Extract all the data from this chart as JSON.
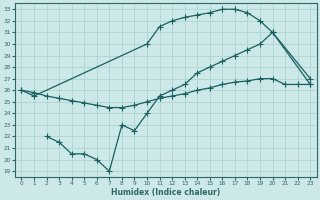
{
  "xlabel": "Humidex (Indice chaleur)",
  "bg_color": "#cce8e8",
  "grid_color": "#a8d0d0",
  "line_color": "#1a6060",
  "spine_color": "#336666",
  "xlim": [
    -0.5,
    23.5
  ],
  "ylim": [
    18.5,
    33.5
  ],
  "xticks": [
    0,
    1,
    2,
    3,
    4,
    5,
    6,
    7,
    8,
    9,
    10,
    11,
    12,
    13,
    14,
    15,
    16,
    17,
    18,
    19,
    20,
    21,
    22,
    23
  ],
  "yticks": [
    19,
    20,
    21,
    22,
    23,
    24,
    25,
    26,
    27,
    28,
    29,
    30,
    31,
    32,
    33
  ],
  "curve1_x": [
    0,
    1,
    10,
    11,
    12,
    13,
    14,
    15,
    16,
    17,
    18,
    19,
    20,
    23
  ],
  "curve1_y": [
    26.0,
    25.5,
    30.0,
    31.5,
    32.0,
    32.3,
    32.5,
    32.7,
    33.0,
    33.0,
    32.7,
    32.0,
    31.0,
    26.5
  ],
  "curve2_x": [
    0,
    1,
    2,
    3,
    4,
    5,
    6,
    7,
    8,
    9,
    10,
    11,
    12,
    13,
    14,
    15,
    16,
    17,
    18,
    19,
    20,
    21,
    22,
    23
  ],
  "curve2_y": [
    26.0,
    25.8,
    25.5,
    25.3,
    25.1,
    24.9,
    24.7,
    24.5,
    24.5,
    24.7,
    25.0,
    25.3,
    25.5,
    25.7,
    26.0,
    26.2,
    26.5,
    26.7,
    26.8,
    27.0,
    27.0,
    26.5,
    26.5,
    26.5
  ],
  "curve3_x": [
    2,
    3,
    4,
    5,
    6,
    7,
    8,
    9,
    10,
    11,
    12,
    13,
    14,
    15,
    16,
    17,
    18,
    19,
    20,
    23
  ],
  "curve3_y": [
    22.0,
    21.5,
    20.5,
    20.5,
    20.0,
    19.0,
    23.0,
    22.5,
    24.0,
    25.5,
    26.0,
    26.5,
    27.5,
    28.0,
    28.5,
    29.0,
    29.5,
    30.0,
    31.0,
    27.0
  ]
}
